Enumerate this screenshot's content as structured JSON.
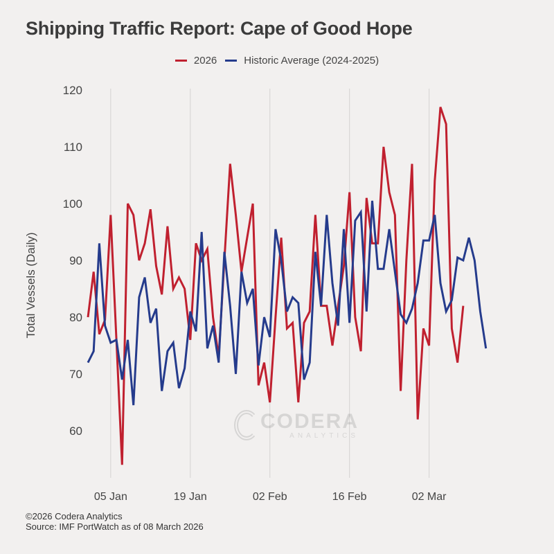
{
  "chart_data": {
    "type": "line",
    "title": "Shipping Traffic Report: Cape of Good Hope",
    "xlabel": "",
    "ylabel": "Total Vessels (Daily)",
    "ylim": [
      50,
      120
    ],
    "yticks": [
      60,
      70,
      80,
      90,
      100,
      110,
      120
    ],
    "xtick_labels": [
      "05 Jan",
      "19 Jan",
      "02 Feb",
      "16 Feb",
      "02 Mar"
    ],
    "xtick_day_index": [
      4,
      18,
      32,
      46,
      60
    ],
    "x_start_date": "01 Jan 2026",
    "x_unit": "day",
    "grid": "vertical at x ticks",
    "legend_position": "top-center",
    "series": [
      {
        "name": "2026",
        "color": "#c0202f",
        "values": [
          80,
          88,
          77,
          79.5,
          98,
          76,
          54,
          100,
          98,
          90,
          93,
          99,
          89,
          84,
          96,
          85,
          87,
          85,
          76,
          93,
          90,
          92,
          80,
          73,
          90,
          107,
          98,
          88,
          94,
          100,
          68,
          72,
          65,
          80,
          94,
          78,
          79,
          65,
          79,
          81,
          98,
          82,
          82,
          75,
          82,
          89,
          102,
          80,
          74,
          101,
          93,
          93,
          110,
          102,
          98,
          67,
          90,
          107,
          62,
          78,
          75,
          104,
          117,
          114,
          78,
          72,
          82
        ]
      },
      {
        "name": "Historic Average (2024-2025)",
        "color": "#253b8c",
        "values": [
          72,
          74,
          93,
          78.5,
          75.5,
          76,
          69,
          76,
          64.5,
          83.5,
          87,
          79,
          81.5,
          67,
          74,
          75.5,
          67.5,
          71,
          81,
          77.5,
          95,
          74.5,
          78.5,
          72,
          91.5,
          82,
          70,
          88,
          82.5,
          85,
          71.5,
          80,
          76.5,
          95.5,
          90,
          81,
          83.5,
          82.5,
          69,
          72,
          91.5,
          82,
          98,
          86,
          78.5,
          95.5,
          79,
          97,
          98.5,
          81,
          100.5,
          88.5,
          88.5,
          95.5,
          88,
          80.5,
          79,
          81.5,
          86,
          93.5,
          93.5,
          98,
          86,
          81,
          83,
          90.5,
          90,
          94,
          90,
          81,
          74.5
        ]
      }
    ]
  },
  "watermark": {
    "main": "CODERA",
    "sub": "ANALYTICS"
  },
  "footer": {
    "copyright": "©2026 Codera Analytics",
    "source": "Source: IMF PortWatch as of 08 March 2026"
  }
}
